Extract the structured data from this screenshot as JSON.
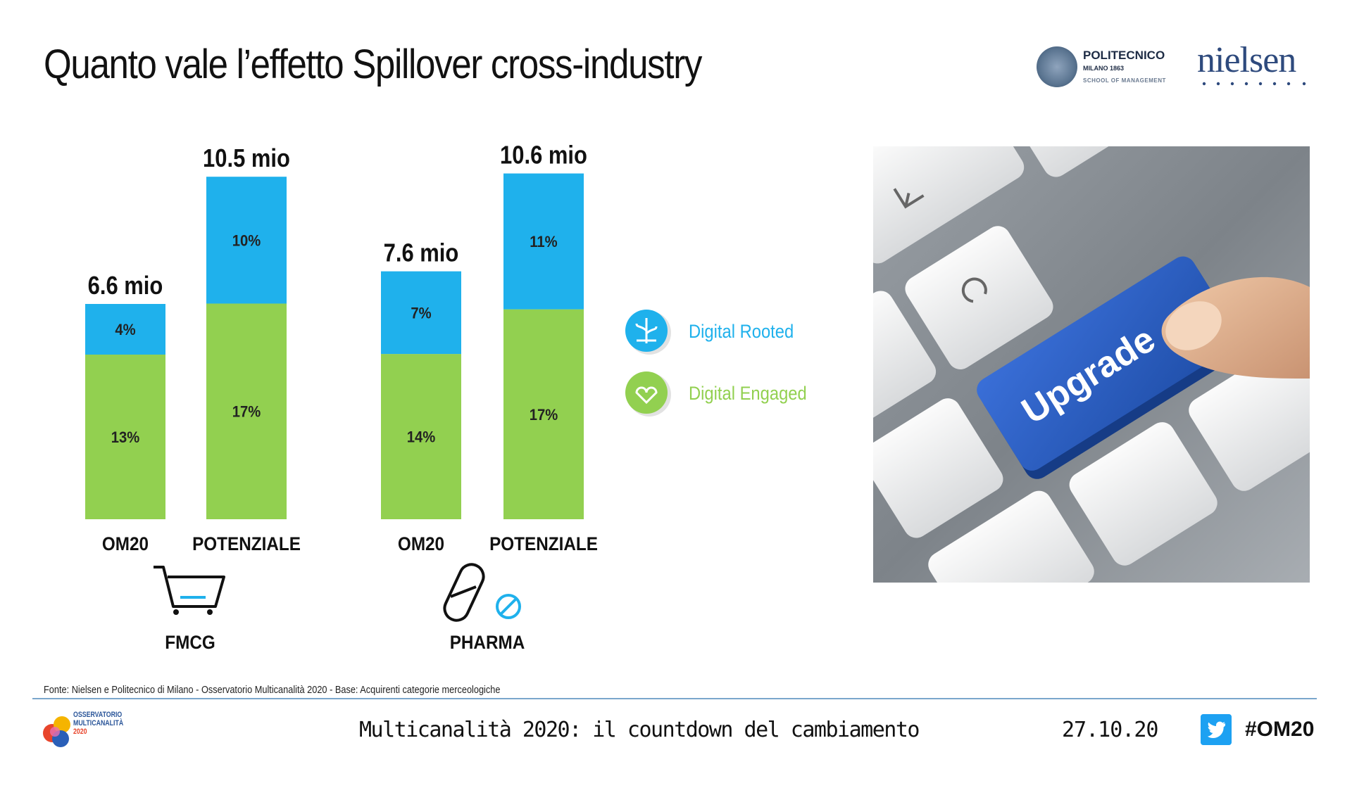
{
  "slide": {
    "title": "Quanto vale l’effetto Spillover cross-industry",
    "source": "Fonte: Nielsen e Politecnico di Milano - Osservatorio Multicanalità 2020 - Base: Acquirenti categorie merceologiche",
    "footer_title": "Multicanalità 2020: il countdown del cambiamento",
    "footer_date": "27.10.20",
    "hashtag": "#OM20",
    "keyboard_key_text": "Upgrade"
  },
  "logos": {
    "polimi_name": "POLITECNICO",
    "polimi_sub1": "MILANO 1863",
    "polimi_sub2": "SCHOOL OF MANAGEMENT",
    "nielsen": "nielsen",
    "om_line1": "OSSERVATORIO",
    "om_line2": "MULTICANALITÀ",
    "om_line3": "2020"
  },
  "chart_data": {
    "type": "bar",
    "stacked": true,
    "groups": [
      {
        "name": "FMCG",
        "icon": "shopping-cart-icon",
        "bars": [
          {
            "category": "OM20",
            "total_label": "6.6 mio",
            "total": 6.6,
            "segments": {
              "Digital Engaged": 13,
              "Digital Rooted": 4
            }
          },
          {
            "category": "POTENZIALE",
            "total_label": "10.5 mio",
            "total": 10.5,
            "segments": {
              "Digital Engaged": 17,
              "Digital Rooted": 10
            }
          }
        ]
      },
      {
        "name": "PHARMA",
        "icon": "pill-icon",
        "bars": [
          {
            "category": "OM20",
            "total_label": "7.6 mio",
            "total": 7.6,
            "segments": {
              "Digital Engaged": 14,
              "Digital Rooted": 7
            }
          },
          {
            "category": "POTENZIALE",
            "total_label": "10.6 mio",
            "total": 10.6,
            "segments": {
              "Digital Engaged": 17,
              "Digital Rooted": 11
            }
          }
        ]
      }
    ],
    "series": [
      {
        "name": "Digital Engaged",
        "color": "#92d050"
      },
      {
        "name": "Digital Rooted",
        "color": "#1fb1ec"
      }
    ],
    "value_unit": "%",
    "ylim": [
      0,
      11
    ]
  }
}
